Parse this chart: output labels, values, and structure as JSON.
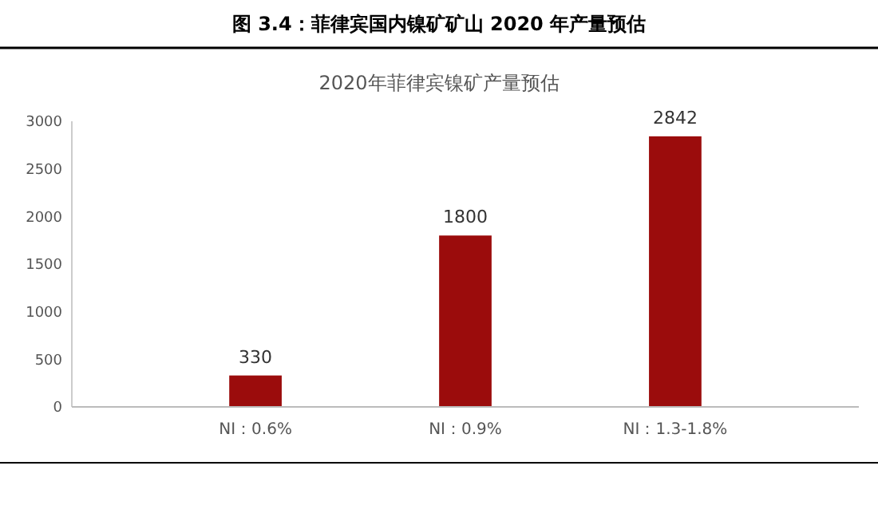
{
  "chart_data": {
    "type": "bar",
    "title": "图 3.4：菲律宾国内镍矿矿山 2020 年产量预估",
    "subtitle": "2020年菲律宾镍矿产量预估",
    "categories": [
      "NI：0.6%",
      "NI：0.9%",
      "NI：1.3-1.8%"
    ],
    "values": [
      330,
      1800,
      2842
    ],
    "color": "#9b0c0c",
    "ylim": [
      0,
      3000
    ],
    "yticks": [
      0,
      500,
      1000,
      1500,
      2000,
      2500,
      3000
    ],
    "grid": false,
    "data_labels": true
  }
}
